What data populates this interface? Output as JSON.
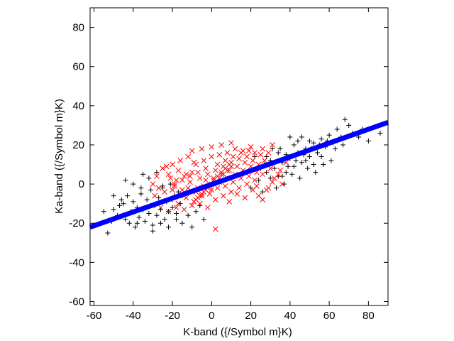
{
  "chart_data": {
    "type": "scatter",
    "title": "",
    "xlabel": "K-band ({/Symbol m}K)",
    "ylabel": "Ka-band ({/Symbol m}K)",
    "xlim": [
      -62,
      90
    ],
    "ylim": [
      -62,
      90
    ],
    "xticks": [
      -60,
      -40,
      -20,
      0,
      20,
      40,
      60,
      80
    ],
    "yticks": [
      -60,
      -40,
      -20,
      0,
      20,
      40,
      60,
      80
    ],
    "xtick_labels": [
      "-60",
      "-40",
      "-20",
      "0",
      "20",
      "40",
      "60",
      "80"
    ],
    "ytick_labels": [
      "-60",
      "-40",
      "-20",
      "0",
      "20",
      "40",
      "60",
      "80"
    ],
    "grid": false,
    "legend": "none",
    "series": [
      {
        "marker": "plus",
        "color": "#000000",
        "description": "broad population",
        "points": [
          [
            -55,
            -14
          ],
          [
            -53,
            -25
          ],
          [
            -51,
            -19
          ],
          [
            -50,
            -13
          ],
          [
            -48,
            -16
          ],
          [
            -47,
            -11
          ],
          [
            -45,
            -10
          ],
          [
            -44,
            -18
          ],
          [
            -43,
            -6
          ],
          [
            -42,
            -20
          ],
          [
            -41,
            -14
          ],
          [
            -40,
            -9
          ],
          [
            -39,
            -22
          ],
          [
            -38,
            -12
          ],
          [
            -37,
            -17
          ],
          [
            -36,
            -5
          ],
          [
            -35,
            -13
          ],
          [
            -34,
            -19
          ],
          [
            -33,
            -8
          ],
          [
            -32,
            -15
          ],
          [
            -31,
            -3
          ],
          [
            -30,
            -21
          ],
          [
            -29,
            -11
          ],
          [
            -28,
            -16
          ],
          [
            -27,
            -7
          ],
          [
            -26,
            -13
          ],
          [
            -25,
            -2
          ],
          [
            -24,
            -18
          ],
          [
            -23,
            -9
          ],
          [
            -22,
            -14
          ],
          [
            -21,
            0
          ],
          [
            -20,
            -12
          ],
          [
            -19,
            -6
          ],
          [
            -18,
            -15
          ],
          [
            -17,
            -4
          ],
          [
            -16,
            -10
          ],
          [
            -35,
            5
          ],
          [
            -32,
            3
          ],
          [
            -28,
            6
          ],
          [
            -25,
            -1
          ],
          [
            -38,
            -20
          ],
          [
            -30,
            -24
          ],
          [
            -26,
            -20
          ],
          [
            -22,
            -22
          ],
          [
            -18,
            -18
          ],
          [
            -44,
            2
          ],
          [
            -40,
            0
          ],
          [
            -36,
            -2
          ],
          [
            -46,
            -8
          ],
          [
            -50,
            -6
          ],
          [
            -15,
            -20
          ],
          [
            -12,
            -16
          ],
          [
            -10,
            -22
          ],
          [
            -8,
            -14
          ],
          [
            -6,
            -11
          ],
          [
            -4,
            -18
          ],
          [
            20,
            -2
          ],
          [
            24,
            2
          ],
          [
            26,
            -4
          ],
          [
            28,
            6
          ],
          [
            30,
            3
          ],
          [
            32,
            8
          ],
          [
            34,
            4
          ],
          [
            36,
            11
          ],
          [
            38,
            6
          ],
          [
            40,
            13
          ],
          [
            42,
            9
          ],
          [
            44,
            16
          ],
          [
            46,
            11
          ],
          [
            48,
            18
          ],
          [
            50,
            14
          ],
          [
            52,
            21
          ],
          [
            54,
            16
          ],
          [
            56,
            23
          ],
          [
            58,
            19
          ],
          [
            60,
            25
          ],
          [
            62,
            21
          ],
          [
            64,
            28
          ],
          [
            66,
            24
          ],
          [
            68,
            33
          ],
          [
            72,
            26
          ],
          [
            75,
            24
          ],
          [
            80,
            22
          ],
          [
            86,
            26
          ],
          [
            38,
            15
          ],
          [
            42,
            20
          ],
          [
            46,
            24
          ],
          [
            50,
            22
          ],
          [
            35,
            18
          ],
          [
            40,
            24
          ],
          [
            44,
            22
          ],
          [
            48,
            12
          ],
          [
            52,
            10
          ],
          [
            56,
            14
          ],
          [
            30,
            12
          ],
          [
            34,
            16
          ],
          [
            37,
            0
          ],
          [
            41,
            5
          ],
          [
            45,
            3
          ],
          [
            49,
            8
          ],
          [
            53,
            6
          ],
          [
            57,
            10
          ],
          [
            61,
            12
          ],
          [
            25,
            8
          ],
          [
            28,
            14
          ],
          [
            31,
            18
          ],
          [
            33,
            -2
          ],
          [
            36,
            4
          ],
          [
            39,
            9
          ],
          [
            43,
            12
          ],
          [
            47,
            15
          ],
          [
            51,
            18
          ],
          [
            55,
            20
          ],
          [
            59,
            22
          ],
          [
            63,
            18
          ],
          [
            67,
            20
          ],
          [
            70,
            30
          ],
          [
            77,
            28
          ],
          [
            22,
            14
          ],
          [
            27,
            10
          ]
        ]
      },
      {
        "marker": "x",
        "color": "#ff0000",
        "description": "central population",
        "points": [
          [
            -25,
            8
          ],
          [
            -22,
            5
          ],
          [
            -20,
            -3
          ],
          [
            -18,
            2
          ],
          [
            -16,
            -6
          ],
          [
            -14,
            4
          ],
          [
            -12,
            -2
          ],
          [
            -10,
            6
          ],
          [
            -8,
            -4
          ],
          [
            -6,
            3
          ],
          [
            -4,
            -1
          ],
          [
            -2,
            5
          ],
          [
            0,
            -3
          ],
          [
            2,
            7
          ],
          [
            4,
            1
          ],
          [
            6,
            9
          ],
          [
            8,
            3
          ],
          [
            10,
            11
          ],
          [
            12,
            5
          ],
          [
            14,
            13
          ],
          [
            16,
            7
          ],
          [
            18,
            14
          ],
          [
            20,
            9
          ],
          [
            22,
            16
          ],
          [
            24,
            10
          ],
          [
            26,
            18
          ],
          [
            -24,
            -4
          ],
          [
            -21,
            -8
          ],
          [
            -19,
            0
          ],
          [
            -17,
            -10
          ],
          [
            -15,
            -3
          ],
          [
            -13,
            -7
          ],
          [
            -11,
            1
          ],
          [
            -9,
            -9
          ],
          [
            -7,
            -2
          ],
          [
            -5,
            -6
          ],
          [
            -3,
            2
          ],
          [
            -1,
            -5
          ],
          [
            1,
            3
          ],
          [
            3,
            -2
          ],
          [
            5,
            5
          ],
          [
            7,
            -1
          ],
          [
            9,
            7
          ],
          [
            11,
            1
          ],
          [
            13,
            9
          ],
          [
            15,
            3
          ],
          [
            17,
            11
          ],
          [
            19,
            4
          ],
          [
            21,
            12
          ],
          [
            23,
            6
          ],
          [
            -20,
            10
          ],
          [
            -16,
            12
          ],
          [
            -12,
            14
          ],
          [
            -8,
            10
          ],
          [
            -4,
            12
          ],
          [
            0,
            14
          ],
          [
            4,
            15
          ],
          [
            8,
            16
          ],
          [
            12,
            18
          ],
          [
            16,
            17
          ],
          [
            -26,
            -12
          ],
          [
            -22,
            -14
          ],
          [
            -18,
            -12
          ],
          [
            -14,
            -13
          ],
          [
            -10,
            -11
          ],
          [
            -6,
            -10
          ],
          [
            -2,
            -12
          ],
          [
            2,
            -8
          ],
          [
            6,
            -6
          ],
          [
            10,
            -4
          ],
          [
            14,
            -2
          ],
          [
            18,
            0
          ],
          [
            22,
            2
          ],
          [
            26,
            5
          ],
          [
            30,
            8
          ],
          [
            -10,
            17
          ],
          [
            -5,
            18
          ],
          [
            0,
            19
          ],
          [
            5,
            20
          ],
          [
            10,
            21
          ],
          [
            2,
            -23
          ],
          [
            -30,
            0
          ],
          [
            -28,
            4
          ],
          [
            -27,
            -2
          ],
          [
            28,
            -3
          ],
          [
            31,
            1
          ],
          [
            34,
            5
          ],
          [
            36,
            0
          ],
          [
            25,
            15
          ],
          [
            20,
            19
          ],
          [
            -3,
            8
          ],
          [
            3,
            10
          ],
          [
            -7,
            6
          ],
          [
            7,
            12
          ],
          [
            -11,
            4
          ],
          [
            11,
            14
          ],
          [
            -15,
            2
          ],
          [
            15,
            16
          ],
          [
            -19,
            -1
          ],
          [
            19,
            17
          ],
          [
            0,
            0
          ],
          [
            1,
            2
          ],
          [
            -1,
            -1
          ],
          [
            2,
            1
          ],
          [
            -2,
            -2
          ],
          [
            3,
            4
          ],
          [
            -3,
            -3
          ],
          [
            4,
            3
          ],
          [
            -4,
            -4
          ],
          [
            5,
            6
          ],
          [
            -5,
            -5
          ],
          [
            6,
            5
          ],
          [
            -6,
            -6
          ],
          [
            7,
            8
          ],
          [
            -7,
            -7
          ],
          [
            8,
            7
          ],
          [
            -8,
            -8
          ],
          [
            9,
            10
          ],
          [
            -9,
            -9
          ],
          [
            10,
            9
          ],
          [
            -13,
            5
          ],
          [
            13,
            -5
          ],
          [
            -9,
            11
          ],
          [
            9,
            -9
          ],
          [
            -17,
            7
          ],
          [
            17,
            -7
          ],
          [
            -21,
            3
          ],
          [
            21,
            -3
          ],
          [
            -23,
            9
          ],
          [
            23,
            -1
          ],
          [
            24,
            -6
          ],
          [
            26,
            -8
          ],
          [
            29,
            -2
          ],
          [
            32,
            3
          ],
          [
            35,
            7
          ],
          [
            38,
            11
          ],
          [
            27,
            12
          ],
          [
            29,
            16
          ],
          [
            31,
            20
          ],
          [
            -29,
            -6
          ]
        ]
      }
    ],
    "fit_line": {
      "color": "#0000ff",
      "x": [
        -62,
        90
      ],
      "y": [
        -22,
        31.5
      ]
    }
  }
}
